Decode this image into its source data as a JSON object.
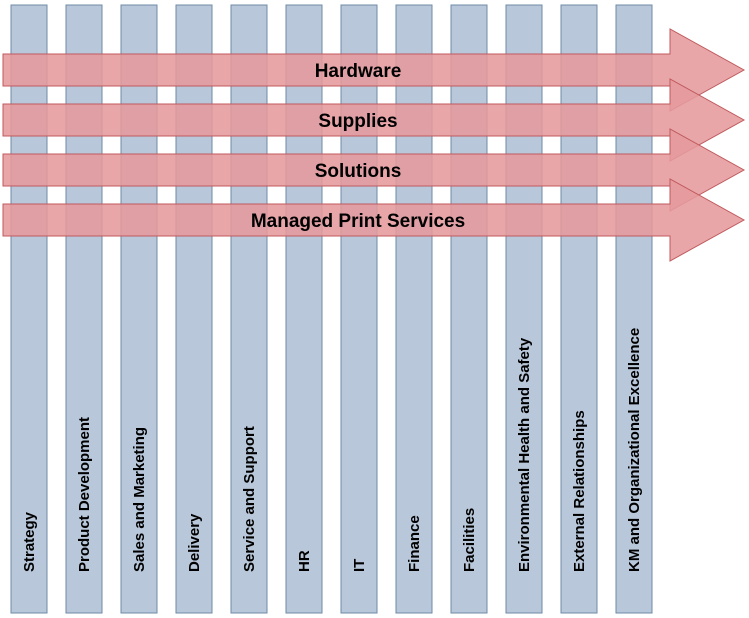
{
  "columns": [
    {
      "label": "Strategy"
    },
    {
      "label": "Product Development"
    },
    {
      "label": "Sales and Marketing"
    },
    {
      "label": "Delivery"
    },
    {
      "label": "Service and Support"
    },
    {
      "label": "HR"
    },
    {
      "label": "IT"
    },
    {
      "label": "Finance"
    },
    {
      "label": "Facilities"
    },
    {
      "label": "Environmental Health and Safety"
    },
    {
      "label": "External Relationships"
    },
    {
      "label": "KM and Organizational Excellence"
    }
  ],
  "rows": [
    {
      "label": "Hardware"
    },
    {
      "label": "Supplies"
    },
    {
      "label": "Solutions"
    },
    {
      "label": "Managed Print Services"
    }
  ],
  "colors": {
    "column_fill": "#b8c7d9",
    "column_stroke": "#6f8aa6",
    "arrow_fill": "#e59a9c",
    "arrow_stroke": "#c05a5e",
    "arrow_opacity": "0.88"
  }
}
